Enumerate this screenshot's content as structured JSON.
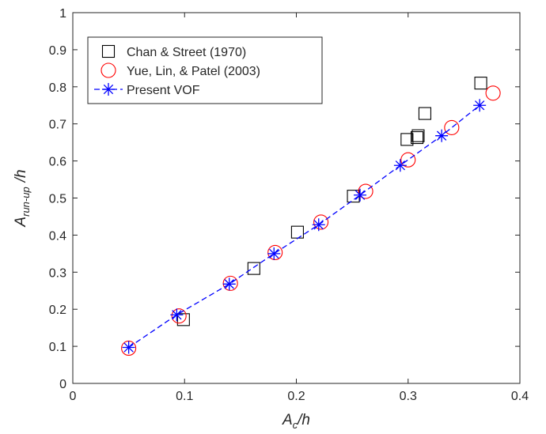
{
  "chart_data": {
    "type": "scatter",
    "title": "",
    "xlabel": {
      "main": "A",
      "sub": "c",
      "suffix": "/h"
    },
    "ylabel": {
      "main": "A",
      "sub": "run-up",
      "suffix": "/h"
    },
    "xlim": [
      0,
      0.4
    ],
    "ylim": [
      0,
      1
    ],
    "xticks": [
      0,
      0.1,
      0.2,
      0.3,
      0.4
    ],
    "xtick_labels": [
      "0",
      "0.1",
      "0.2",
      "0.3",
      "0.4"
    ],
    "yticks": [
      0,
      0.1,
      0.2,
      0.3,
      0.4,
      0.5,
      0.6,
      0.7,
      0.8,
      0.9,
      1
    ],
    "ytick_labels": [
      "0",
      "0.1",
      "0.2",
      "0.3",
      "0.4",
      "0.5",
      "0.6",
      "0.7",
      "0.8",
      "0.9",
      "1"
    ],
    "grid": false,
    "legend_position": "top-left",
    "series": [
      {
        "name": "Chan & Street (1970)",
        "marker": "square",
        "line": "none",
        "color": "#000000",
        "x": [
          0.099,
          0.162,
          0.201,
          0.251,
          0.299,
          0.308,
          0.309,
          0.315,
          0.365
        ],
        "y": [
          0.172,
          0.31,
          0.408,
          0.505,
          0.658,
          0.663,
          0.668,
          0.728,
          0.81
        ]
      },
      {
        "name": "Yue, Lin, & Patel (2003)",
        "marker": "circle",
        "line": "none",
        "color": "#ff0000",
        "x": [
          0.05,
          0.095,
          0.141,
          0.181,
          0.222,
          0.262,
          0.3,
          0.339,
          0.376
        ],
        "y": [
          0.095,
          0.182,
          0.27,
          0.353,
          0.435,
          0.518,
          0.603,
          0.69,
          0.783
        ]
      },
      {
        "name": "Present VOF",
        "marker": "asterisk",
        "line": "dashed",
        "color": "#0000ff",
        "x": [
          0.05,
          0.093,
          0.14,
          0.18,
          0.22,
          0.257,
          0.293,
          0.33,
          0.364
        ],
        "y": [
          0.097,
          0.185,
          0.268,
          0.35,
          0.428,
          0.508,
          0.588,
          0.668,
          0.75
        ]
      }
    ]
  }
}
